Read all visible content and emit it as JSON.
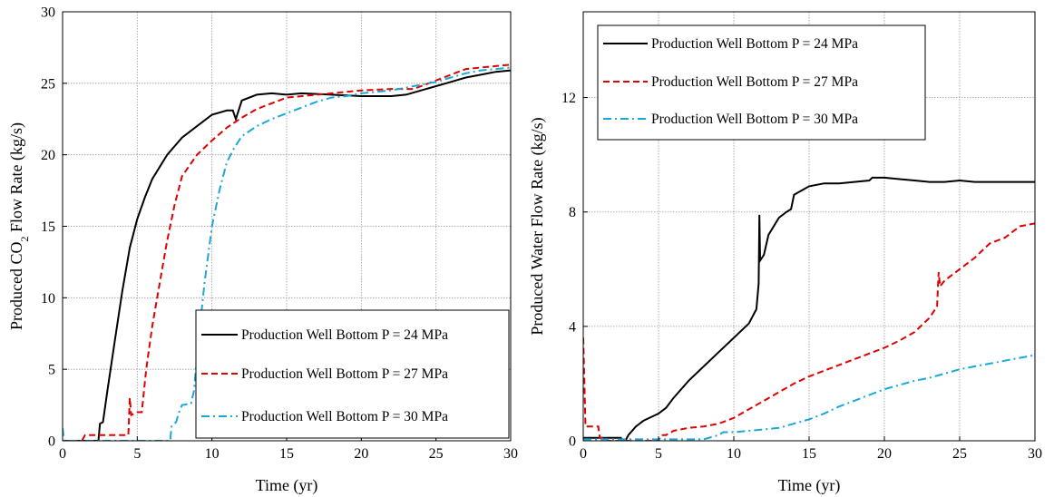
{
  "chart_data": [
    {
      "type": "line",
      "xlabel": "Time (yr)",
      "ylabel_parts": [
        "Produced CO",
        "2",
        " Flow Rate (kg/s)"
      ],
      "xlim": [
        0,
        30
      ],
      "ylim": [
        0,
        30
      ],
      "xticks": [
        0,
        5,
        10,
        15,
        20,
        25,
        30
      ],
      "yticks": [
        0,
        5,
        10,
        15,
        20,
        25,
        30
      ],
      "grid": true,
      "legend_position": "bottom-right",
      "series": [
        {
          "name": "Production Well Bottom P = 24 MPa",
          "color": "#000000",
          "style": "solid",
          "points": [
            [
              0,
              0
            ],
            [
              2.4,
              0
            ],
            [
              2.5,
              1.2
            ],
            [
              2.7,
              1.3
            ],
            [
              3,
              3.5
            ],
            [
              3.5,
              7
            ],
            [
              4,
              10.5
            ],
            [
              4.5,
              13.5
            ],
            [
              5,
              15.5
            ],
            [
              5.5,
              17
            ],
            [
              6,
              18.3
            ],
            [
              7,
              20
            ],
            [
              8,
              21.2
            ],
            [
              9,
              22
            ],
            [
              10,
              22.8
            ],
            [
              11,
              23.1
            ],
            [
              11.4,
              23.1
            ],
            [
              11.6,
              22.5
            ],
            [
              12,
              23.8
            ],
            [
              13,
              24.2
            ],
            [
              14,
              24.3
            ],
            [
              15,
              24.2
            ],
            [
              16,
              24.3
            ],
            [
              18,
              24.2
            ],
            [
              20,
              24.1
            ],
            [
              22,
              24.1
            ],
            [
              23,
              24.2
            ],
            [
              24,
              24.5
            ],
            [
              25,
              24.8
            ],
            [
              26,
              25.1
            ],
            [
              27,
              25.4
            ],
            [
              28,
              25.6
            ],
            [
              29,
              25.8
            ],
            [
              30,
              25.9
            ]
          ]
        },
        {
          "name": "Production Well Bottom P = 27 MPa",
          "color": "#e00000",
          "style": "dashed",
          "points": [
            [
              0,
              0
            ],
            [
              1.3,
              0
            ],
            [
              1.5,
              0.4
            ],
            [
              4.4,
              0.4
            ],
            [
              4.5,
              3
            ],
            [
              4.6,
              1.8
            ],
            [
              5,
              2
            ],
            [
              5.3,
              2
            ],
            [
              5.6,
              5
            ],
            [
              6,
              8
            ],
            [
              6.5,
              11
            ],
            [
              7,
              14
            ],
            [
              7.5,
              16.5
            ],
            [
              8,
              18.5
            ],
            [
              9,
              20
            ],
            [
              10,
              21
            ],
            [
              11,
              21.9
            ],
            [
              12,
              22.6
            ],
            [
              13,
              23.2
            ],
            [
              14,
              23.6
            ],
            [
              15,
              24
            ],
            [
              16,
              24.1
            ],
            [
              18,
              24.3
            ],
            [
              20,
              24.5
            ],
            [
              22,
              24.6
            ],
            [
              23,
              24.6
            ],
            [
              23.5,
              24.6
            ],
            [
              24,
              24.8
            ],
            [
              25,
              25.2
            ],
            [
              26,
              25.6
            ],
            [
              27,
              26
            ],
            [
              28,
              26.1
            ],
            [
              29,
              26.2
            ],
            [
              30,
              26.3
            ]
          ]
        },
        {
          "name": "Production Well Bottom P = 30 MPa",
          "color": "#1aa8d8",
          "style": "dashdot",
          "points": [
            [
              0,
              0.9
            ],
            [
              0.1,
              0
            ],
            [
              7.2,
              0
            ],
            [
              7.3,
              1
            ],
            [
              7.6,
              1.3
            ],
            [
              7.8,
              2
            ],
            [
              8,
              2.5
            ],
            [
              8.6,
              2.6
            ],
            [
              8.8,
              3.5
            ],
            [
              9,
              6
            ],
            [
              9.5,
              11
            ],
            [
              10,
              15
            ],
            [
              10.5,
              17.5
            ],
            [
              11,
              19.5
            ],
            [
              11.5,
              20.5
            ],
            [
              12,
              21.3
            ],
            [
              13,
              22
            ],
            [
              14,
              22.5
            ],
            [
              15,
              22.9
            ],
            [
              16,
              23.3
            ],
            [
              17,
              23.7
            ],
            [
              18,
              24
            ],
            [
              19,
              24.1
            ],
            [
              20,
              24.3
            ],
            [
              22,
              24.5
            ],
            [
              24,
              24.9
            ],
            [
              25,
              25.1
            ],
            [
              26,
              25.4
            ],
            [
              27,
              25.7
            ],
            [
              28,
              25.9
            ],
            [
              29,
              26
            ],
            [
              30,
              26.1
            ]
          ]
        }
      ]
    },
    {
      "type": "line",
      "xlabel": "Time (yr)",
      "ylabel_parts": [
        "Produced Water Flow Rate (kg/s)"
      ],
      "xlim": [
        0,
        30
      ],
      "ylim": [
        0,
        15
      ],
      "xticks": [
        0,
        5,
        10,
        15,
        20,
        25,
        30
      ],
      "yticks": [
        0,
        4,
        8,
        12
      ],
      "grid": true,
      "legend_position": "top-left",
      "series": [
        {
          "name": "Production Well Bottom P = 24 MPa",
          "color": "#000000",
          "style": "solid",
          "points": [
            [
              0,
              0.1
            ],
            [
              2.5,
              0.1
            ],
            [
              2.6,
              0
            ],
            [
              2.8,
              0
            ],
            [
              3,
              0.2
            ],
            [
              3.5,
              0.5
            ],
            [
              4,
              0.7
            ],
            [
              5,
              0.95
            ],
            [
              5.5,
              1.15
            ],
            [
              6,
              1.5
            ],
            [
              7,
              2.1
            ],
            [
              8,
              2.6
            ],
            [
              9,
              3.1
            ],
            [
              10,
              3.6
            ],
            [
              11,
              4.1
            ],
            [
              11.5,
              4.6
            ],
            [
              11.65,
              5.5
            ],
            [
              11.7,
              7.9
            ],
            [
              11.75,
              6.3
            ],
            [
              12,
              6.5
            ],
            [
              12.3,
              7.2
            ],
            [
              13,
              7.8
            ],
            [
              13.5,
              8
            ],
            [
              13.8,
              8.1
            ],
            [
              14,
              8.6
            ],
            [
              15,
              8.9
            ],
            [
              16,
              9
            ],
            [
              17,
              9
            ],
            [
              18,
              9.05
            ],
            [
              19,
              9.1
            ],
            [
              19.2,
              9.2
            ],
            [
              20,
              9.2
            ],
            [
              21,
              9.15
            ],
            [
              22,
              9.1
            ],
            [
              23,
              9.05
            ],
            [
              24,
              9.05
            ],
            [
              25,
              9.1
            ],
            [
              26,
              9.05
            ],
            [
              27,
              9.05
            ],
            [
              28,
              9.05
            ],
            [
              29,
              9.05
            ],
            [
              30,
              9.05
            ]
          ]
        },
        {
          "name": "Production Well Bottom P = 27 MPa",
          "color": "#e00000",
          "style": "dashed",
          "points": [
            [
              0,
              3.6
            ],
            [
              0.15,
              0.5
            ],
            [
              1,
              0.5
            ],
            [
              1.1,
              0.1
            ],
            [
              1.5,
              0.1
            ],
            [
              1.7,
              0
            ],
            [
              5,
              0
            ],
            [
              5.2,
              0.2
            ],
            [
              5.5,
              0.2
            ],
            [
              6,
              0.35
            ],
            [
              7,
              0.45
            ],
            [
              8,
              0.5
            ],
            [
              9,
              0.6
            ],
            [
              10,
              0.8
            ],
            [
              11,
              1.1
            ],
            [
              12,
              1.4
            ],
            [
              13,
              1.7
            ],
            [
              14,
              2
            ],
            [
              15,
              2.25
            ],
            [
              16,
              2.45
            ],
            [
              17,
              2.65
            ],
            [
              18,
              2.85
            ],
            [
              19,
              3.05
            ],
            [
              20,
              3.25
            ],
            [
              21,
              3.5
            ],
            [
              22,
              3.8
            ],
            [
              23,
              4.3
            ],
            [
              23.5,
              4.7
            ],
            [
              23.6,
              5.9
            ],
            [
              23.7,
              5.4
            ],
            [
              24,
              5.6
            ],
            [
              25,
              6
            ],
            [
              26,
              6.4
            ],
            [
              27,
              6.9
            ],
            [
              28,
              7.1
            ],
            [
              29,
              7.5
            ],
            [
              30,
              7.6
            ]
          ]
        },
        {
          "name": "Production Well Bottom P = 30 MPa",
          "color": "#1aa8d8",
          "style": "dashdot",
          "points": [
            [
              0,
              0.05
            ],
            [
              2,
              0.05
            ],
            [
              8,
              0.05
            ],
            [
              9,
              0.2
            ],
            [
              9.3,
              0.3
            ],
            [
              10,
              0.3
            ],
            [
              11,
              0.35
            ],
            [
              12,
              0.4
            ],
            [
              13,
              0.45
            ],
            [
              14,
              0.6
            ],
            [
              15,
              0.75
            ],
            [
              16,
              0.95
            ],
            [
              17,
              1.2
            ],
            [
              18,
              1.4
            ],
            [
              19,
              1.6
            ],
            [
              20,
              1.8
            ],
            [
              21,
              1.95
            ],
            [
              22,
              2.1
            ],
            [
              23,
              2.2
            ],
            [
              24,
              2.35
            ],
            [
              25,
              2.5
            ],
            [
              26,
              2.6
            ],
            [
              27,
              2.7
            ],
            [
              28,
              2.8
            ],
            [
              29,
              2.9
            ],
            [
              30,
              3
            ]
          ]
        }
      ]
    }
  ]
}
